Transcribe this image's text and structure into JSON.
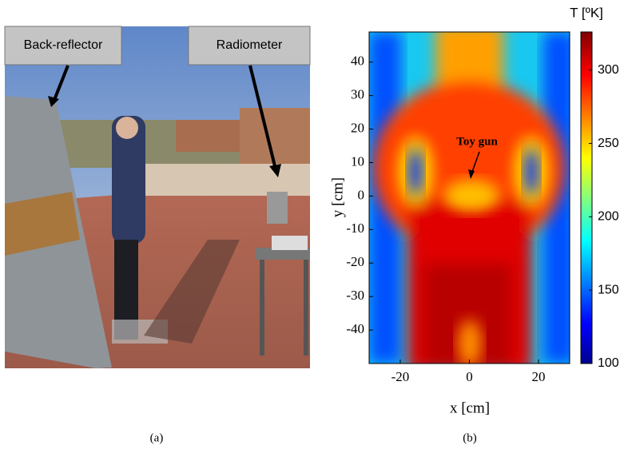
{
  "panel_a": {
    "labels": [
      "Back-reflector",
      "Radiometer"
    ],
    "caption": "(a)"
  },
  "panel_b": {
    "x_label": "x [cm]",
    "y_label": "y [cm]",
    "xlim": [
      -29,
      29
    ],
    "ylim": [
      -50,
      49
    ],
    "xticks": [
      -20,
      0,
      20
    ],
    "yticks": [
      40,
      30,
      20,
      10,
      0,
      -10,
      -20,
      -30,
      -40
    ],
    "annotation": "Toy gun",
    "colorbar": {
      "title": "T [ºK]",
      "lim": [
        100,
        326
      ],
      "ticks": [
        100,
        150,
        200,
        250,
        300
      ]
    },
    "caption": "(b)"
  }
}
